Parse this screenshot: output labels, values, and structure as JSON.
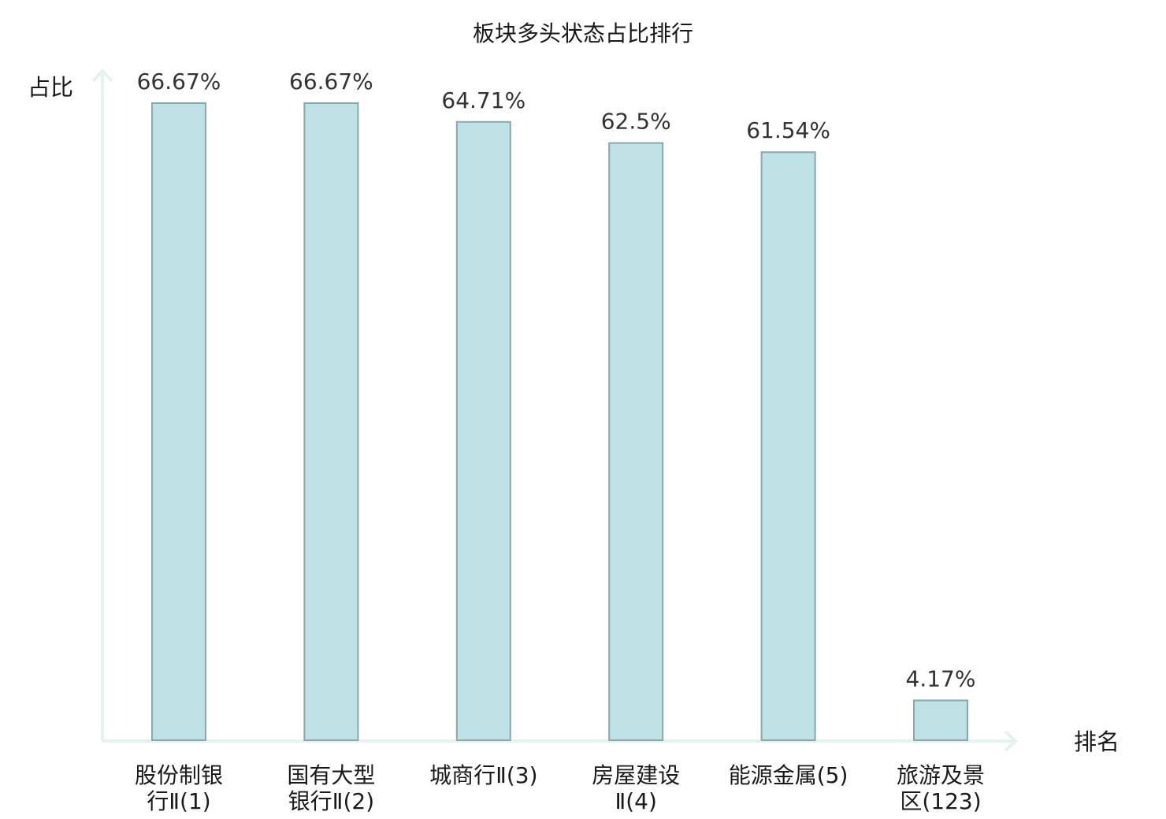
{
  "chart_data": {
    "type": "bar",
    "title": "板块多头状态占比排行",
    "xlabel": "排名",
    "ylabel": "占比",
    "ylim": [
      0,
      66.67
    ],
    "grid": false,
    "legend": "none",
    "categories": [
      [
        "股份制银",
        "行Ⅱ(1)"
      ],
      [
        "国有大型",
        "银行Ⅱ(2)"
      ],
      [
        "城商行Ⅱ(3)"
      ],
      [
        "房屋建设",
        "Ⅱ(4)"
      ],
      [
        "能源金属(5)"
      ],
      [
        "旅游及景",
        "区(123)"
      ]
    ],
    "values": [
      66.67,
      66.67,
      64.71,
      62.5,
      61.54,
      4.17
    ],
    "data_labels": [
      "66.67%",
      "66.67%",
      "64.71%",
      "62.5%",
      "61.54%",
      "4.17%"
    ],
    "highlight_index": 5,
    "colors": {
      "bar_fill": "#bde1e4",
      "bar_stroke": "#8aa7a9",
      "axis": "#e3f3f0",
      "label_normal": "#1a1a1a",
      "label_highlight": "#e60000",
      "value_text": "#333333"
    }
  }
}
